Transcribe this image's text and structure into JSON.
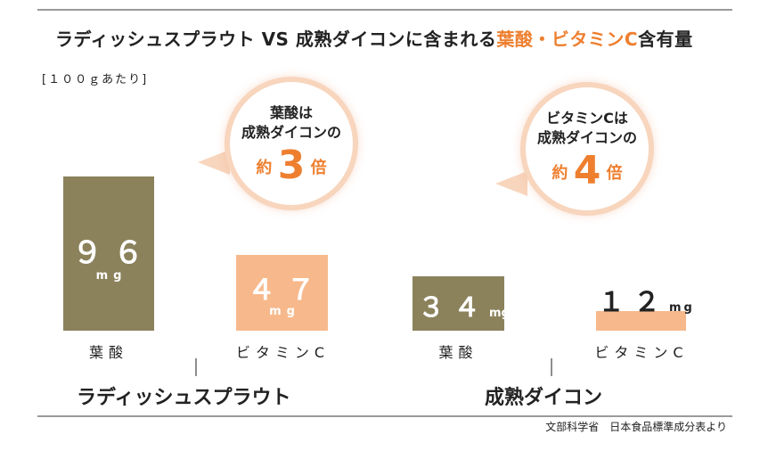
{
  "title": {
    "prefix": "ラディッシュスプラウト VS 成熟ダイコンに含まれる",
    "highlight": "葉酸・ビタミンC",
    "suffix": "含有量"
  },
  "unit_note": "[１００ｇあたり]",
  "bubbles": [
    {
      "line1": "葉酸は",
      "line2": "成熟ダイコンの",
      "prefix": "約",
      "number": "3",
      "suffix": "倍"
    },
    {
      "line1": "ビタミンCは",
      "line2": "成熟ダイコンの",
      "prefix": "約",
      "number": "4",
      "suffix": "倍"
    }
  ],
  "groups": [
    "ラディッシュスプラウト",
    "成熟ダイコン"
  ],
  "bar_labels": [
    "葉酸",
    "ビタミンC",
    "葉酸",
    "ビタミンC"
  ],
  "value_labels": [
    "９６",
    "４７",
    "３４",
    "１２"
  ],
  "unit": "mg",
  "source": "文部科学省　日本食品標準成分表より",
  "colors": {
    "folate": "#8b825c",
    "vitamin_c": "#f7b98c",
    "accent": "#ee7f2f",
    "bubble_ring": "#f8d5bd"
  },
  "chart_data": {
    "type": "bar",
    "title": "ラディッシュスプラウト VS 成熟ダイコンに含まれる葉酸・ビタミンC含有量",
    "unit": "mg",
    "groups": [
      "ラディッシュスプラウト",
      "成熟ダイコン"
    ],
    "categories": [
      "葉酸",
      "ビタミンC"
    ],
    "series": [
      {
        "name": "ラディッシュスプラウト",
        "values": [
          96,
          47
        ]
      },
      {
        "name": "成熟ダイコン",
        "values": [
          34,
          12
        ]
      }
    ],
    "grid": false
  }
}
